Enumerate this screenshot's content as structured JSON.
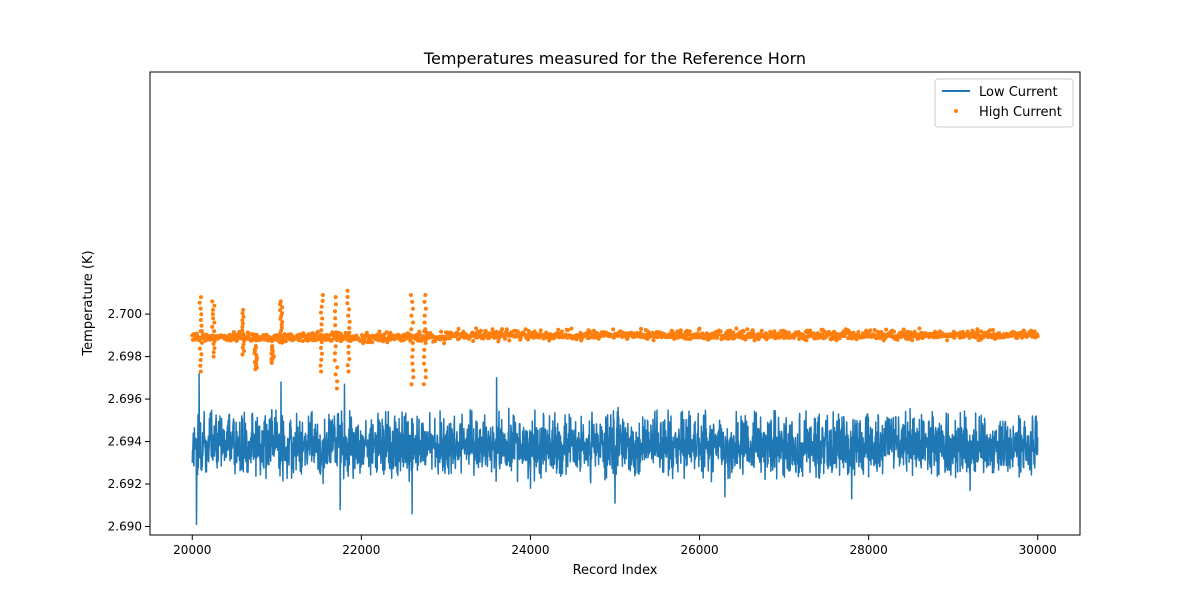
{
  "chart_data": {
    "type": "line",
    "title": "Temperatures measured for the Reference Horn",
    "xlabel": "Record Index",
    "ylabel": "Temperature (K)",
    "xlim": [
      19500,
      30500
    ],
    "ylim": [
      2.6896,
      2.7114
    ],
    "xticks": [
      20000,
      22000,
      24000,
      26000,
      28000,
      30000
    ],
    "xtick_labels": [
      "20000",
      "22000",
      "24000",
      "26000",
      "28000",
      "30000"
    ],
    "yticks": [
      2.69,
      2.692,
      2.694,
      2.696,
      2.698,
      2.7
    ],
    "ytick_labels": [
      "2.690",
      "2.692",
      "2.694",
      "2.696",
      "2.698",
      "2.700"
    ],
    "grid": false,
    "legend_position": "top-right",
    "series": [
      {
        "name": "Low Current",
        "style": "line",
        "color": "#1f77b4",
        "x_start": 20000,
        "x_end": 30000,
        "center": 2.6938,
        "band": [
          2.6931,
          2.6947
        ],
        "typical_max": 2.6955,
        "typical_min": 2.6925,
        "min": 2.6901,
        "max": 2.6972,
        "spikes": [
          {
            "x": 20050,
            "y": 2.6901
          },
          {
            "x": 20080,
            "y": 2.6972
          },
          {
            "x": 21050,
            "y": 2.6968
          },
          {
            "x": 21800,
            "y": 2.6967
          },
          {
            "x": 21750,
            "y": 2.6908
          },
          {
            "x": 22600,
            "y": 2.6906
          },
          {
            "x": 23600,
            "y": 2.697
          },
          {
            "x": 24000,
            "y": 2.6918
          },
          {
            "x": 25000,
            "y": 2.6911
          },
          {
            "x": 26300,
            "y": 2.6914
          },
          {
            "x": 27800,
            "y": 2.6913
          },
          {
            "x": 29200,
            "y": 2.6917
          }
        ]
      },
      {
        "name": "High Current",
        "style": "scatter",
        "color": "#ff7f0e",
        "x_start": 20000,
        "x_end": 30000,
        "early_center": 2.6989,
        "late_center": 2.699,
        "transition_x": 23000,
        "band_halfwidth": 0.0002,
        "outlier_clusters": [
          {
            "x": 20100,
            "low": 2.6973,
            "high": 2.7008
          },
          {
            "x": 20250,
            "low": 2.698,
            "high": 2.7006
          },
          {
            "x": 20600,
            "low": 2.6981,
            "high": 2.7002
          },
          {
            "x": 20750,
            "low": 2.6974,
            "high": 2.6985
          },
          {
            "x": 20950,
            "low": 2.6977,
            "high": 2.6985
          },
          {
            "x": 21050,
            "low": 2.6988,
            "high": 2.7006
          },
          {
            "x": 21530,
            "low": 2.6973,
            "high": 2.7009
          },
          {
            "x": 21700,
            "low": 2.6965,
            "high": 2.7008
          },
          {
            "x": 21850,
            "low": 2.6973,
            "high": 2.7011
          },
          {
            "x": 22600,
            "low": 2.6967,
            "high": 2.7009
          },
          {
            "x": 22750,
            "low": 2.6967,
            "high": 2.7009
          }
        ]
      }
    ]
  }
}
